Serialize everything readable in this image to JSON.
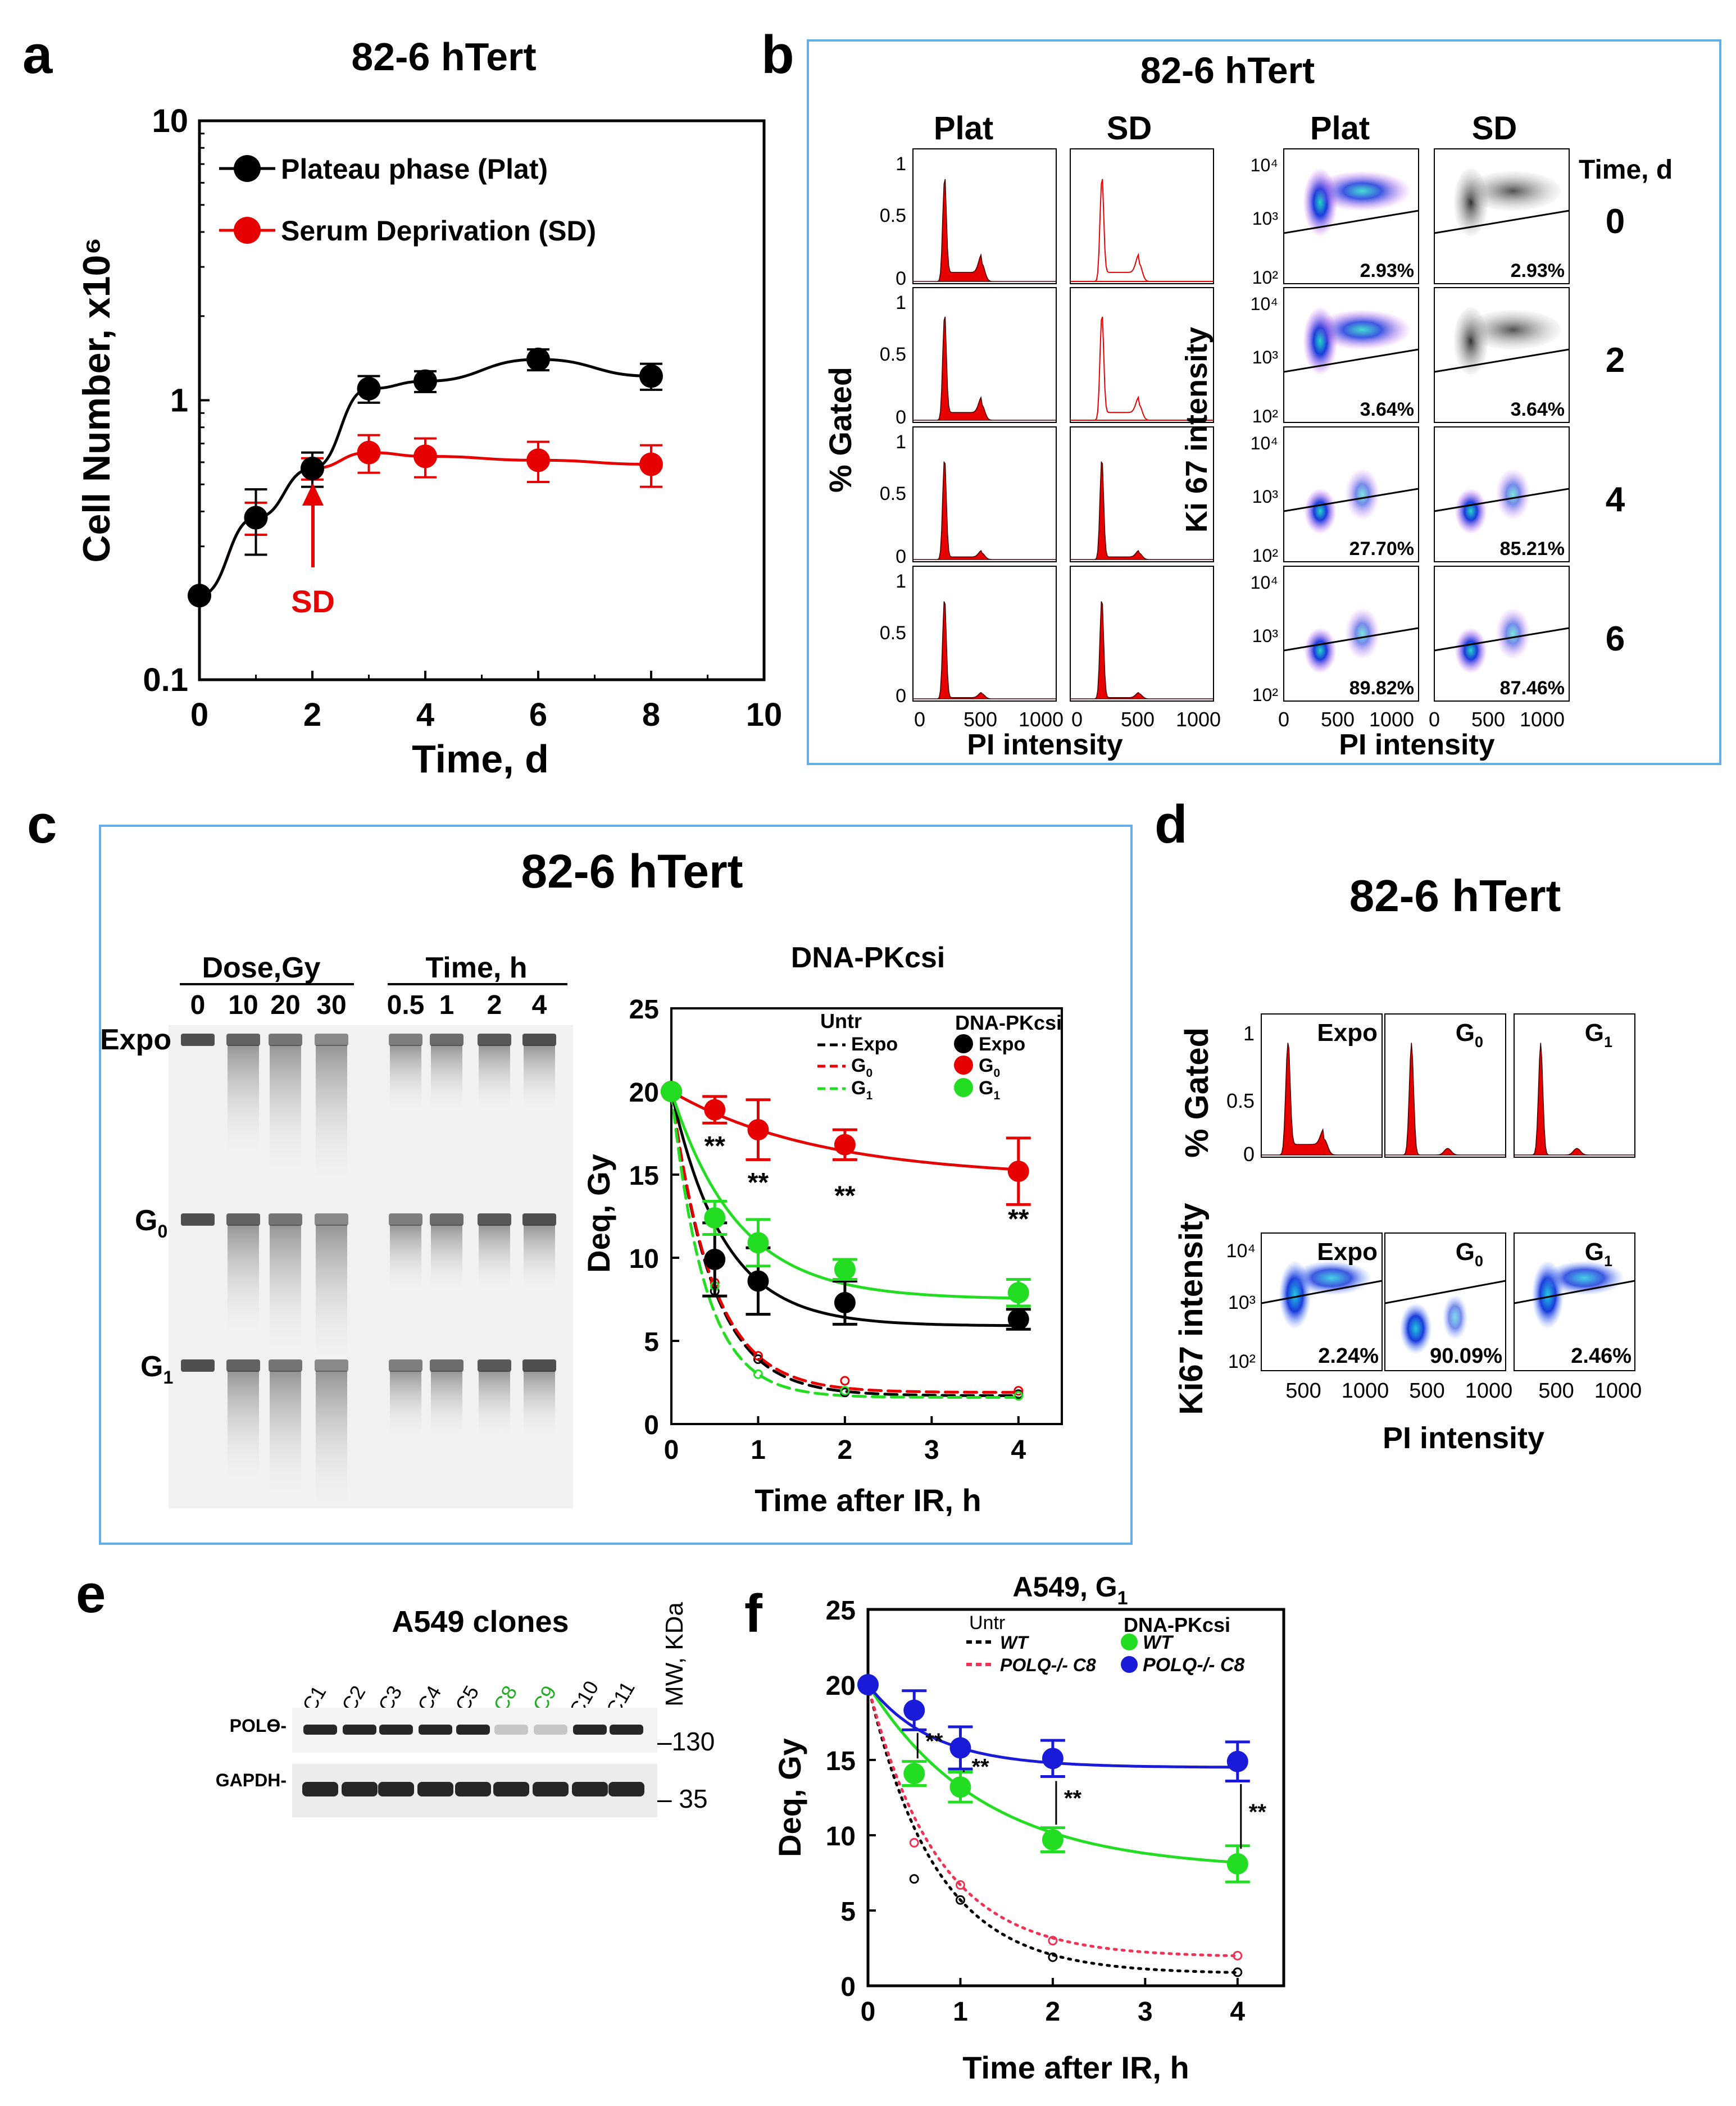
{
  "panel_letters": {
    "a": "a",
    "b": "b",
    "c": "c",
    "d": "d",
    "e": "e",
    "f": "f"
  },
  "panel_titles": {
    "a": "82-6 hTert",
    "b": "82-6 hTert",
    "c": "82-6 hTert",
    "d": "82-6 hTert"
  },
  "colors": {
    "black": "#000000",
    "red": "#e60000",
    "green": "#22dd22",
    "blue": "#1a1ad9",
    "panel_border": "#62aee8",
    "magenta": "#c040e0"
  },
  "panel_b": {
    "col_plat": "Plat",
    "col_sd": "SD",
    "time_header": "Time, d",
    "times": [
      "0",
      "2",
      "4",
      "6"
    ],
    "hist_yticks": [
      "1",
      "0.5",
      "0"
    ],
    "hist_xticks": [
      "0",
      "500",
      "1000"
    ],
    "hist_ylabel": "% Gated",
    "hist_xlabel": "PI intensity",
    "ki_ylabel": "Ki 67 intensity",
    "ki_xlabel": "PI intensity",
    "ki_yticks": [
      "10⁴",
      "10³",
      "10²"
    ],
    "ki_xticks": [
      "0",
      "500",
      "1000"
    ],
    "percent_plat": [
      "2.93%",
      "3.64%",
      "27.70%",
      "89.82%"
    ],
    "percent_sd": [
      "2.93%",
      "3.64%",
      "85.21%",
      "87.46%"
    ]
  },
  "panel_c_gel": {
    "dose_header": "Dose,Gy",
    "time_header": "Time, h",
    "doses": [
      "0",
      "10",
      "20",
      "30"
    ],
    "times": [
      "0.5",
      "1",
      "2",
      "4"
    ],
    "rows": [
      "Expo",
      "G0",
      "G1"
    ]
  },
  "panel_d": {
    "hist_labels": [
      "Expo",
      "G0",
      "G1"
    ],
    "hist_yticks": [
      "1",
      "0.5",
      "0"
    ],
    "ylabel_top": "% Gated",
    "ylabel_bottom": "Ki67 intensity",
    "ki_yticks": [
      "10⁴",
      "10³",
      "10²"
    ],
    "xticks": [
      "500",
      "1000"
    ],
    "xlabel": "PI intensity",
    "percents": [
      "2.24%",
      "90.09%",
      "2.46%"
    ]
  },
  "panel_e": {
    "title": "A549 clones",
    "clones": [
      "C1",
      "C2",
      "C3",
      "C4",
      "C5",
      "C8",
      "C9",
      "C10",
      "C11"
    ],
    "highlighted": [
      "C8",
      "C9"
    ],
    "bands": [
      "POLϴ-",
      "GAPDH-"
    ],
    "mw_label": "MW, KDa",
    "mw_markers": [
      "–130",
      "– 35"
    ]
  },
  "chart_data": [
    {
      "id": "a",
      "type": "line",
      "title": "82-6 hTert",
      "xlabel": "Time, d",
      "ylabel": "Cell Number, x10⁶",
      "xlim": [
        0,
        10
      ],
      "ylim": [
        0.1,
        10
      ],
      "yscale": "log",
      "xticks": [
        "0",
        "2",
        "4",
        "6",
        "8",
        "10"
      ],
      "yticks": [
        "10",
        "1",
        "0.1"
      ],
      "series": [
        {
          "name": "Plateau phase (Plat)",
          "color": "#000000",
          "x": [
            0,
            1,
            2,
            3,
            4,
            6,
            8
          ],
          "values": [
            0.2,
            0.38,
            0.57,
            1.1,
            1.17,
            1.4,
            1.22
          ],
          "err": [
            0,
            0.1,
            0.08,
            0.12,
            0.1,
            0.12,
            0.13
          ]
        },
        {
          "name": "Serum Deprivation (SD)",
          "color": "#e60000",
          "x": [
            0,
            1,
            2,
            3,
            4,
            6,
            8
          ],
          "values": [
            0.2,
            0.38,
            0.57,
            0.65,
            0.63,
            0.61,
            0.59
          ],
          "err": [
            0,
            0.05,
            0.05,
            0.1,
            0.1,
            0.1,
            0.1
          ]
        }
      ],
      "annotation": "SD"
    },
    {
      "id": "c",
      "type": "line",
      "title": "DNA-PKcsi",
      "xlabel": "Time after IR, h",
      "ylabel": "Deq, Gy",
      "xlim": [
        0,
        4.5
      ],
      "ylim": [
        0,
        25
      ],
      "xticks": [
        "0",
        "1",
        "2",
        "3",
        "4"
      ],
      "yticks": [
        "0",
        "5",
        "10",
        "15",
        "20",
        "25"
      ],
      "legend_untr_title": "Untr",
      "legend_dna_title": "DNA-PKcsi",
      "series": [
        {
          "name": "Expo",
          "group": "Untr",
          "color": "#000000",
          "dashed": true,
          "x": [
            0,
            0.5,
            1,
            2,
            4
          ],
          "values": [
            20,
            8,
            3.9,
            1.9,
            1.8
          ]
        },
        {
          "name": "G0",
          "group": "Untr",
          "color": "#e60000",
          "dashed": true,
          "x": [
            0,
            0.5,
            1,
            2,
            4
          ],
          "values": [
            20,
            8.5,
            4.1,
            2.6,
            2.0
          ]
        },
        {
          "name": "G1",
          "group": "Untr",
          "color": "#22dd22",
          "dashed": true,
          "x": [
            0,
            0.5,
            1,
            2,
            4
          ],
          "values": [
            20,
            8.3,
            3.0,
            2.0,
            1.7
          ]
        },
        {
          "name": "Expo",
          "group": "DNA-PKcsi",
          "color": "#000000",
          "dashed": false,
          "x": [
            0,
            0.5,
            1,
            2,
            4
          ],
          "values": [
            20,
            9.9,
            8.6,
            7.3,
            6.3
          ],
          "err": [
            0,
            2.2,
            2.0,
            1.3,
            0.6
          ]
        },
        {
          "name": "G0",
          "group": "DNA-PKcsi",
          "color": "#e60000",
          "dashed": false,
          "x": [
            0,
            0.5,
            1,
            2,
            4
          ],
          "values": [
            20,
            18.9,
            17.7,
            16.8,
            15.2
          ],
          "err": [
            0,
            0.8,
            1.8,
            0.9,
            2.0
          ]
        },
        {
          "name": "G1",
          "group": "DNA-PKcsi",
          "color": "#22dd22",
          "dashed": false,
          "x": [
            0,
            0.5,
            1,
            2,
            4
          ],
          "values": [
            20,
            12.4,
            10.9,
            9.3,
            7.9
          ],
          "err": [
            0,
            1.0,
            1.4,
            0.6,
            0.8
          ]
        }
      ],
      "significance": "**"
    },
    {
      "id": "f",
      "type": "line",
      "title": "A549, G1",
      "xlabel": "Time after IR, h",
      "ylabel": "Deq, Gy",
      "xlim": [
        0,
        4.5
      ],
      "ylim": [
        0,
        25
      ],
      "xticks": [
        "0",
        "1",
        "2",
        "3",
        "4"
      ],
      "yticks": [
        "0",
        "5",
        "10",
        "15",
        "20",
        "25"
      ],
      "legend_untr_title": "Untr",
      "legend_dna_title": "DNA-PKcsi",
      "series": [
        {
          "name": "WT",
          "group": "Untr",
          "color": "#000000",
          "dashed": true,
          "x": [
            0,
            0.5,
            1,
            2,
            4
          ],
          "values": [
            20,
            7.1,
            5.7,
            1.9,
            0.9
          ]
        },
        {
          "name": "POLQ-/- C8",
          "group": "Untr",
          "color": "#ee3355",
          "dashed": true,
          "x": [
            0,
            0.5,
            1,
            2,
            4
          ],
          "values": [
            20,
            9.5,
            6.7,
            3.0,
            2.0
          ]
        },
        {
          "name": "WT",
          "group": "DNA-PKcsi",
          "color": "#22dd22",
          "dashed": false,
          "x": [
            0,
            0.5,
            1,
            2,
            4
          ],
          "values": [
            20,
            14.1,
            13.2,
            9.7,
            8.1
          ],
          "err": [
            0,
            0.8,
            1.0,
            0.8,
            1.2
          ]
        },
        {
          "name": "POLQ-/- C8",
          "group": "DNA-PKcsi",
          "color": "#1a1ad9",
          "dashed": false,
          "x": [
            0,
            0.5,
            1,
            2,
            4
          ],
          "values": [
            20,
            18.3,
            15.8,
            15.1,
            14.9
          ],
          "err": [
            0,
            1.3,
            1.4,
            1.2,
            1.3
          ]
        }
      ],
      "significance": "**"
    }
  ]
}
